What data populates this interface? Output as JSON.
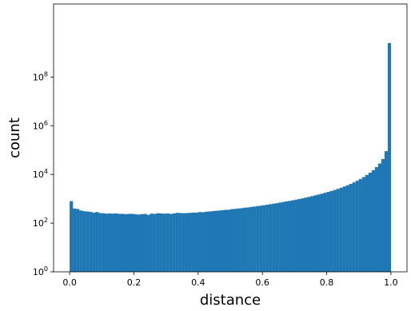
{
  "chart_data": {
    "type": "bar",
    "title": "",
    "xlabel": "distance",
    "ylabel": "count",
    "xlim": [
      -0.05,
      1.05
    ],
    "ylim": [
      1,
      100000000000
    ],
    "yscale": "log",
    "grid": false,
    "bar_color": "#1f77b4",
    "x_ticks": [
      {
        "value": 0.0,
        "label": "0.0"
      },
      {
        "value": 0.2,
        "label": "0.2"
      },
      {
        "value": 0.4,
        "label": "0.4"
      },
      {
        "value": 0.6,
        "label": "0.6"
      },
      {
        "value": 0.8,
        "label": "0.8"
      },
      {
        "value": 1.0,
        "label": "1.0"
      }
    ],
    "y_ticks": [
      {
        "value": 1,
        "base": "10",
        "exp": "0"
      },
      {
        "value": 100,
        "base": "10",
        "exp": "2"
      },
      {
        "value": 10000,
        "base": "10",
        "exp": "4"
      },
      {
        "value": 1000000,
        "base": "10",
        "exp": "6"
      },
      {
        "value": 100000000,
        "base": "10",
        "exp": "8"
      }
    ],
    "bins": {
      "start": 0.0,
      "end": 1.0,
      "count": 100
    },
    "values": [
      800,
      400,
      380,
      330,
      310,
      300,
      290,
      270,
      285,
      260,
      255,
      245,
      250,
      245,
      250,
      240,
      240,
      235,
      240,
      240,
      230,
      225,
      235,
      240,
      220,
      245,
      240,
      255,
      250,
      245,
      250,
      240,
      250,
      265,
      260,
      255,
      260,
      265,
      270,
      270,
      285,
      280,
      295,
      300,
      310,
      320,
      330,
      340,
      350,
      355,
      375,
      385,
      400,
      410,
      430,
      440,
      460,
      480,
      500,
      520,
      545,
      570,
      600,
      630,
      660,
      700,
      740,
      780,
      820,
      870,
      920,
      980,
      1040,
      1120,
      1200,
      1290,
      1390,
      1500,
      1620,
      1760,
      1920,
      2100,
      2300,
      2550,
      2850,
      3200,
      3600,
      4100,
      4700,
      5500,
      6500,
      7800,
      9500,
      11800,
      15000,
      20000,
      28000,
      43000,
      90000,
      2500000000
    ]
  }
}
